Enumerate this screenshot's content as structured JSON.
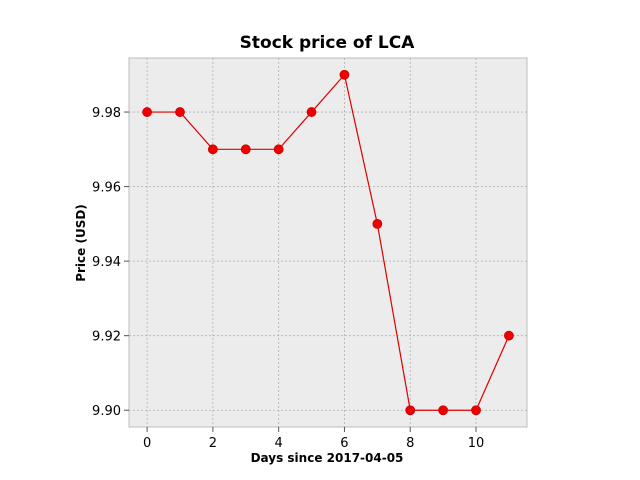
{
  "chart_data": {
    "type": "line",
    "title": "Stock price of LCA",
    "xlabel": "Days since 2017-04-05",
    "ylabel": "Price (USD)",
    "x": [
      0,
      1,
      2,
      3,
      4,
      5,
      6,
      7,
      8,
      9,
      10,
      11
    ],
    "series": [
      {
        "values": [
          9.98,
          9.98,
          9.97,
          9.97,
          9.97,
          9.98,
          9.99,
          9.95,
          9.9,
          9.9,
          9.9,
          9.92
        ]
      }
    ],
    "xlim": [
      -0.55,
      11.55
    ],
    "ylim": [
      9.8955,
      9.9945
    ],
    "xticks": [
      0,
      2,
      4,
      6,
      8,
      10
    ],
    "xtick_labels": [
      "0",
      "2",
      "4",
      "6",
      "8",
      "10"
    ],
    "yticks": [
      9.9,
      9.92,
      9.94,
      9.96,
      9.98
    ],
    "ytick_labels": [
      "9.90",
      "9.92",
      "9.94",
      "9.96",
      "9.98"
    ],
    "grid": true,
    "colors": {
      "line": "#dd0000",
      "marker": "#ee0000",
      "plot_background": "#ececec",
      "grid": "#b0b0b0"
    }
  }
}
